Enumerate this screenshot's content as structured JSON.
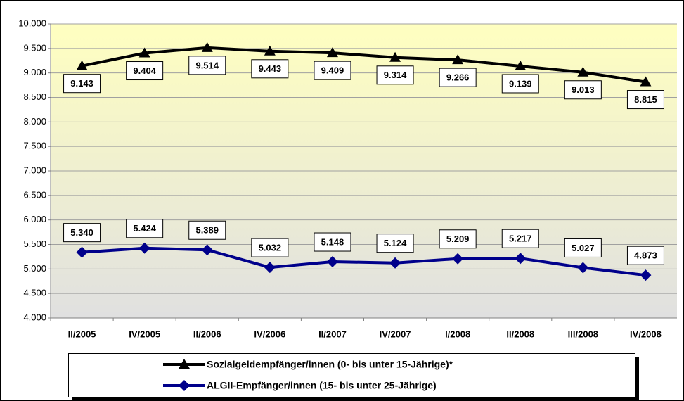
{
  "chart_data": {
    "type": "line",
    "categories": [
      "II/2005",
      "IV/2005",
      "II/2006",
      "IV/2006",
      "II/2007",
      "IV/2007",
      "I/2008",
      "II/2008",
      "III/2008",
      "IV/2008"
    ],
    "series": [
      {
        "name": "Sozialgeldempfänger/innen (0- bis unter 15-Jährige)*",
        "color": "#000000",
        "marker": "triangle",
        "values": [
          9143,
          9404,
          9514,
          9443,
          9409,
          9314,
          9266,
          9139,
          9013,
          8815
        ],
        "value_labels": [
          "9.143",
          "9.404",
          "9.514",
          "9.443",
          "9.409",
          "9.314",
          "9.266",
          "9.139",
          "9.013",
          "8.815"
        ]
      },
      {
        "name": "ALGII-Empfänger/innen (15- bis unter 25-Jährige)",
        "color": "#00008b",
        "marker": "diamond",
        "values": [
          5340,
          5424,
          5389,
          5032,
          5148,
          5124,
          5209,
          5217,
          5027,
          4873
        ],
        "value_labels": [
          "5.340",
          "5.424",
          "5.389",
          "5.032",
          "5.148",
          "5.124",
          "5.209",
          "5.217",
          "5.027",
          "4.873"
        ]
      }
    ],
    "ylim": [
      4000,
      10000
    ],
    "yticks": [
      {
        "value": 4000,
        "label": "4.000"
      },
      {
        "value": 4500,
        "label": "4.500"
      },
      {
        "value": 5000,
        "label": "5.000"
      },
      {
        "value": 5500,
        "label": "5.500"
      },
      {
        "value": 6000,
        "label": "6.000"
      },
      {
        "value": 6500,
        "label": "6.500"
      },
      {
        "value": 7000,
        "label": "7.000"
      },
      {
        "value": 7500,
        "label": "7.500"
      },
      {
        "value": 8000,
        "label": "8.000"
      },
      {
        "value": 8500,
        "label": "8.500"
      },
      {
        "value": 9000,
        "label": "9.000"
      },
      {
        "value": 9500,
        "label": "9.500"
      },
      {
        "value": 10000,
        "label": "10.000"
      }
    ],
    "grid": true
  }
}
